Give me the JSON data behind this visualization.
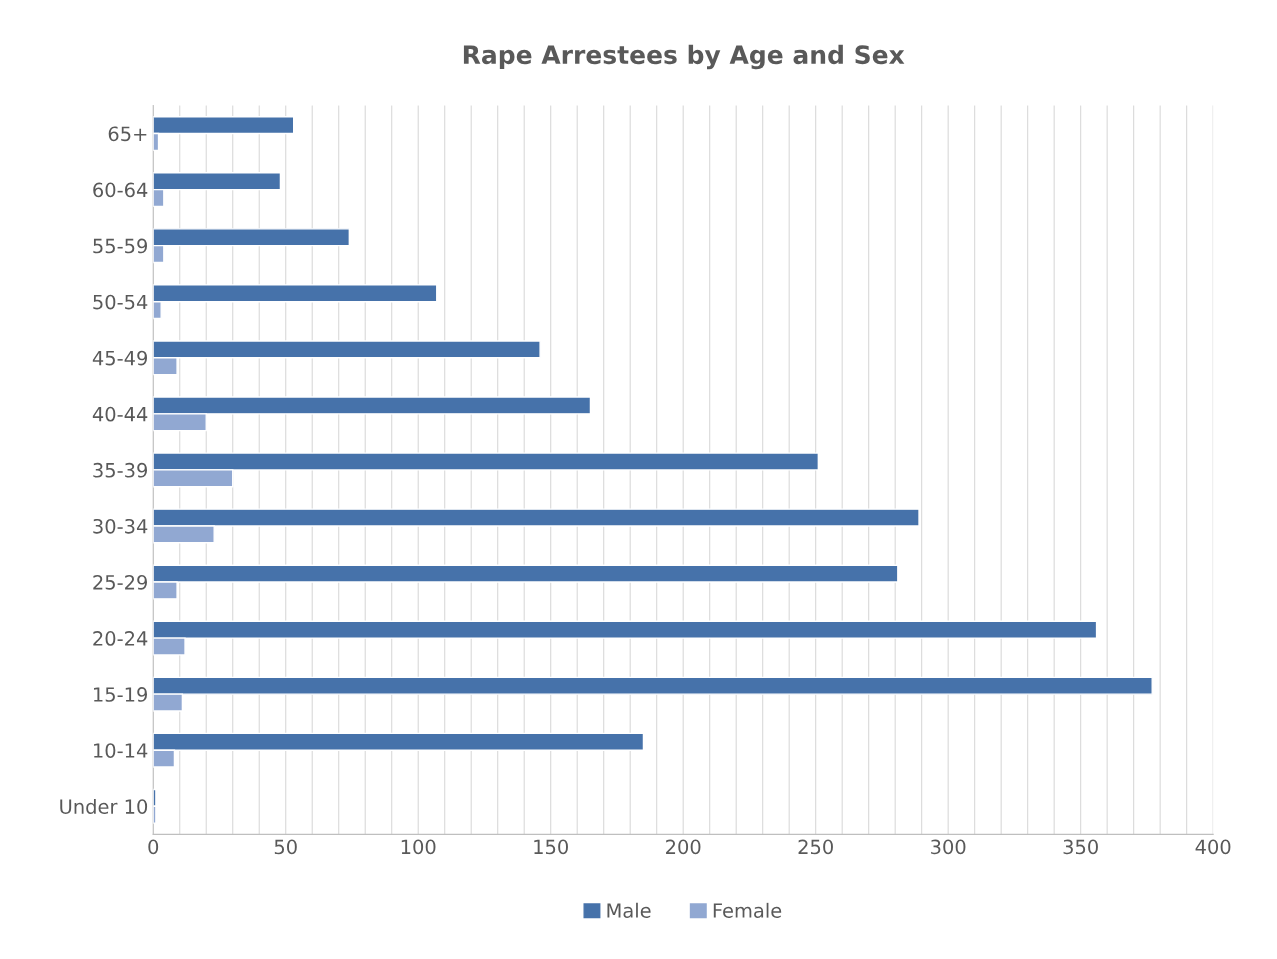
{
  "chart_data": {
    "type": "bar",
    "orientation": "horizontal",
    "title": "Rape Arrestees by Age and Sex",
    "categories": [
      "65+",
      "60-64",
      "55-59",
      "50-54",
      "45-49",
      "40-44",
      "35-39",
      "30-34",
      "25-29",
      "20-24",
      "15-19",
      "10-14",
      "Under 10"
    ],
    "series": [
      {
        "name": "Male",
        "color": "#4672aa",
        "values": [
          53,
          48,
          74,
          107,
          146,
          165,
          251,
          289,
          281,
          356,
          377,
          185,
          1
        ]
      },
      {
        "name": "Female",
        "color": "#91a8d2",
        "values": [
          2,
          4,
          4,
          3,
          9,
          20,
          30,
          23,
          9,
          12,
          11,
          8,
          1
        ]
      }
    ],
    "xlim": [
      0,
      400
    ],
    "xticks": [
      0,
      {
        "value": 10,
        "label": null
      },
      {
        "value": 20,
        "label": null
      },
      {
        "value": 30,
        "label": null
      },
      {
        "value": 40,
        "label": null
      },
      50,
      {
        "value": 60,
        "label": null
      },
      {
        "value": 70,
        "label": null
      },
      {
        "value": 80,
        "label": null
      },
      {
        "value": 90,
        "label": null
      },
      100,
      {
        "value": 110,
        "label": null
      },
      {
        "value": 120,
        "label": null
      },
      {
        "value": 130,
        "label": null
      },
      {
        "value": 140,
        "label": null
      },
      150,
      {
        "value": 160,
        "label": null
      },
      {
        "value": 170,
        "label": null
      },
      {
        "value": 180,
        "label": null
      },
      {
        "value": 190,
        "label": null
      },
      200,
      {
        "value": 210,
        "label": null
      },
      {
        "value": 220,
        "label": null
      },
      {
        "value": 230,
        "label": null
      },
      {
        "value": 240,
        "label": null
      },
      250,
      {
        "value": 260,
        "label": null
      },
      {
        "value": 270,
        "label": null
      },
      {
        "value": 280,
        "label": null
      },
      {
        "value": 290,
        "label": null
      },
      300,
      {
        "value": 310,
        "label": null
      },
      {
        "value": 320,
        "label": null
      },
      {
        "value": 330,
        "label": null
      },
      {
        "value": 340,
        "label": null
      },
      350,
      {
        "value": 360,
        "label": null
      },
      {
        "value": 370,
        "label": null
      },
      {
        "value": 380,
        "label": null
      },
      {
        "value": 390,
        "label": null
      },
      400
    ],
    "grid": "x",
    "legend": "bottom"
  }
}
